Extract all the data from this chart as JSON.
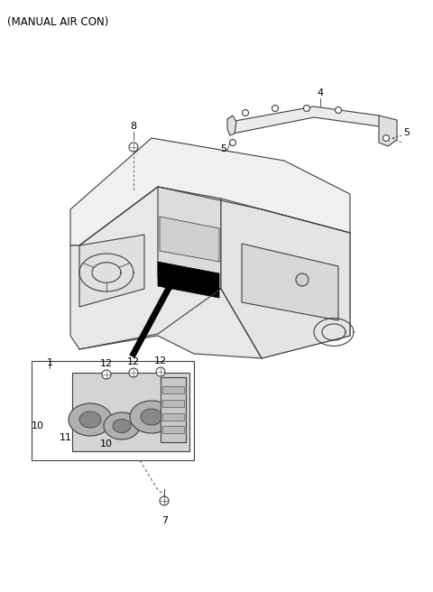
{
  "title": "(MANUAL AIR CON)",
  "background": "#ffffff",
  "title_fontsize": 8.5,
  "label_fontsize": 8,
  "fig_width": 4.8,
  "fig_height": 6.56
}
